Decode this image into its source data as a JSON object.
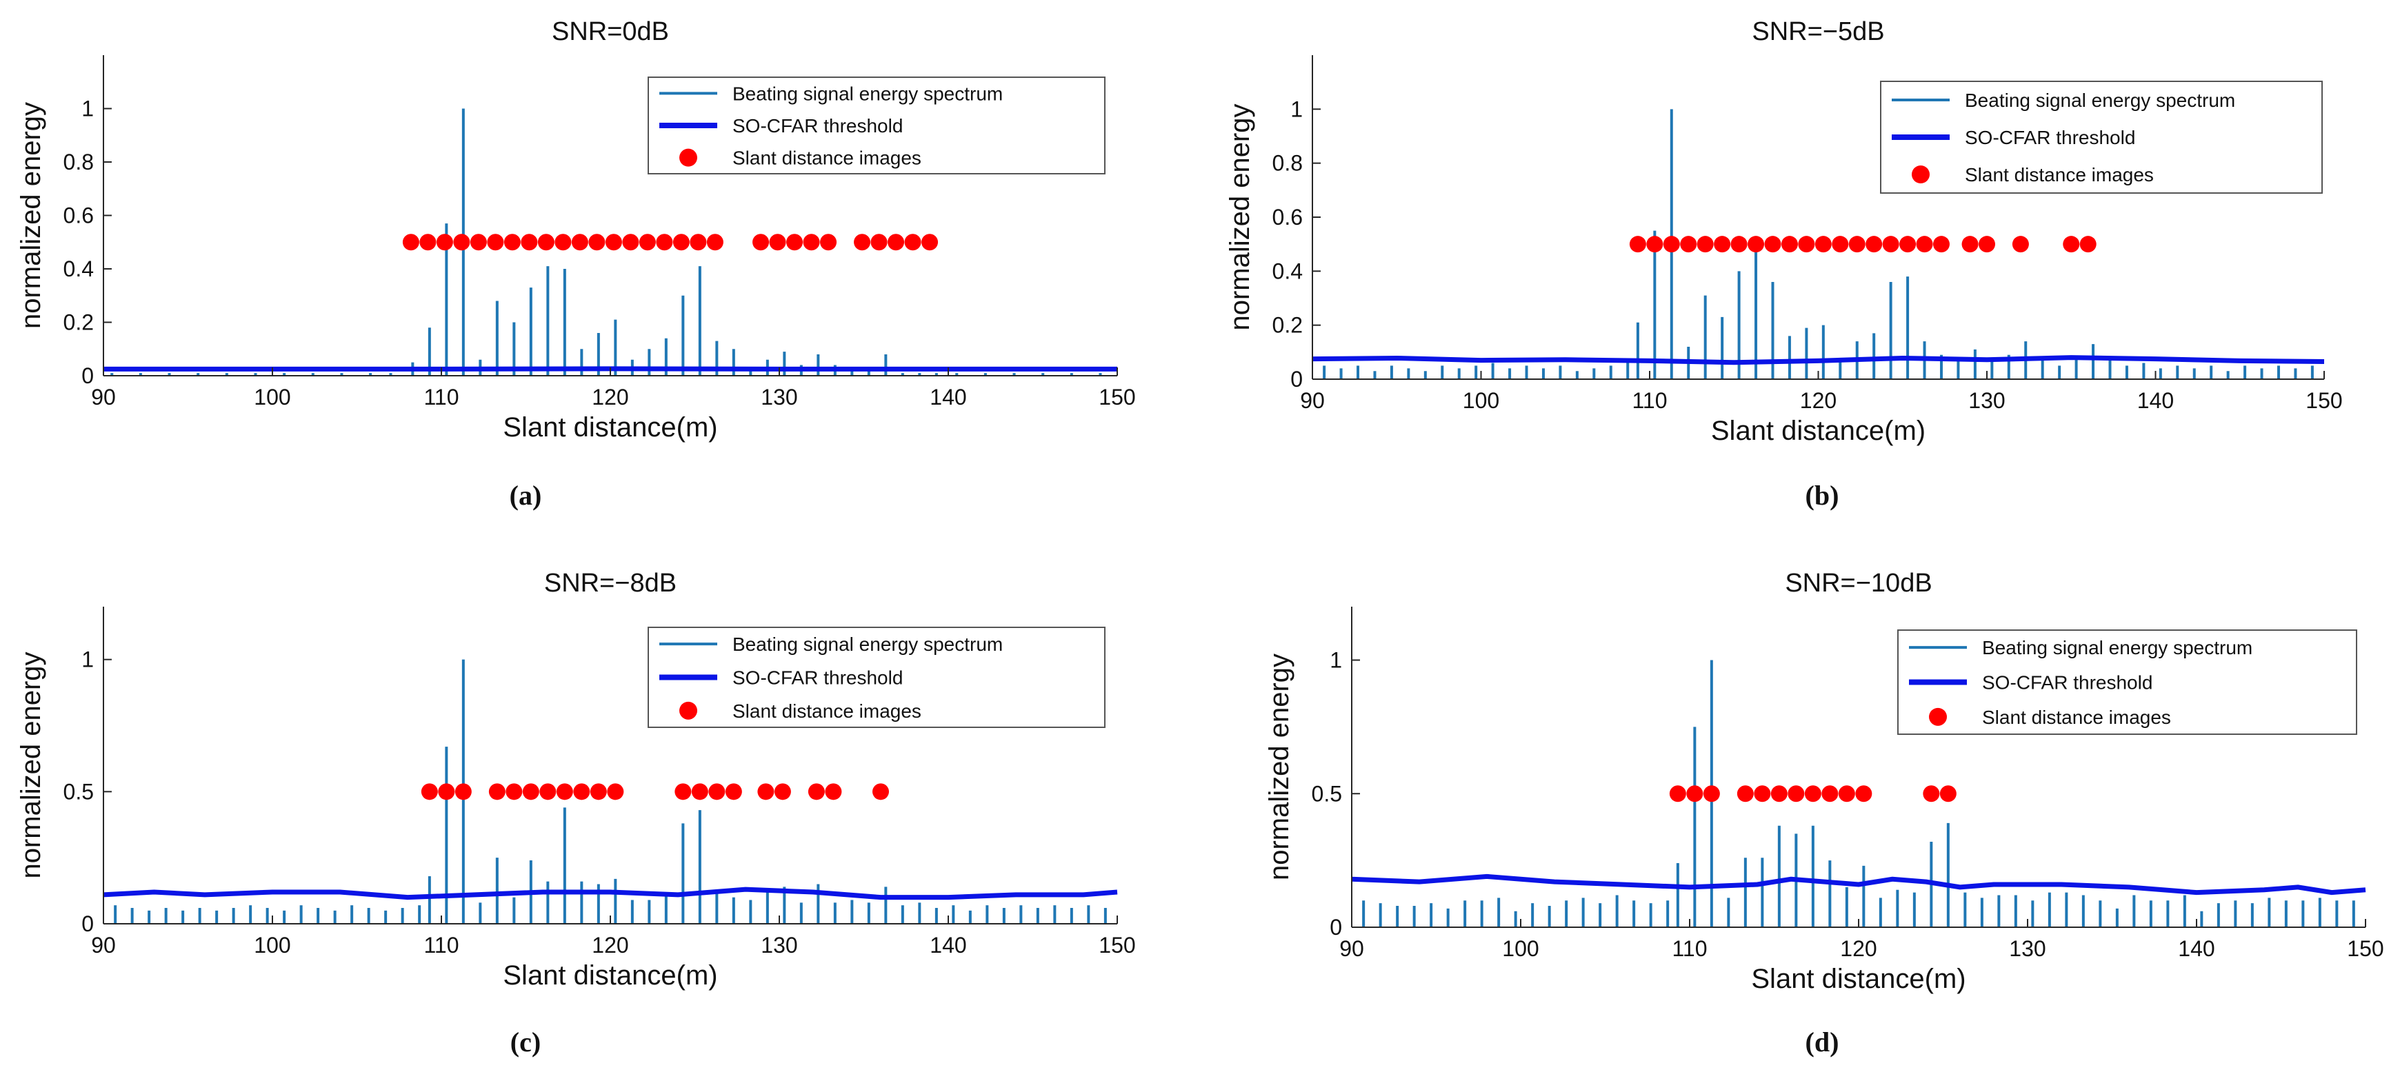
{
  "figure": {
    "legend": {
      "spectrum": "Beating signal energy spectrum",
      "threshold": "SO-CFAR threshold",
      "images": "Slant distance images"
    },
    "colors": {
      "spectrum": "#1f77b4",
      "threshold": "#0a14e6",
      "images": "#ff0000",
      "axis": "#262626"
    }
  },
  "chart_data": [
    {
      "id": "a",
      "label": "(a)",
      "type": "bar",
      "title": "SNR=0dB",
      "xlabel": "Slant distance(m)",
      "ylabel": "normalized energy",
      "xlim": [
        90,
        150
      ],
      "ylim": [
        0,
        1.2
      ],
      "xticks": [
        90,
        100,
        110,
        120,
        130,
        140,
        150
      ],
      "yticks": [
        0,
        0.2,
        0.4,
        0.6,
        0.8,
        1
      ],
      "ytick_labels": [
        "0",
        "0.2",
        "0.4",
        "0.6",
        "0.8",
        "1"
      ],
      "series": [
        {
          "name": "Beating signal energy spectrum",
          "x": [
            90.5,
            92.2,
            93.9,
            95.6,
            97.3,
            99.0,
            100.7,
            102.4,
            104.1,
            105.8,
            107.0,
            108.3,
            109.3,
            110.3,
            111.3,
            112.3,
            113.3,
            114.3,
            115.3,
            116.3,
            117.3,
            118.3,
            119.3,
            120.3,
            121.3,
            122.3,
            123.3,
            124.3,
            125.3,
            126.3,
            127.3,
            128.3,
            129.3,
            130.3,
            131.3,
            132.3,
            133.3,
            134.3,
            135.3,
            136.3,
            137.3,
            138.3,
            139.3,
            140.5,
            142.2,
            143.9,
            145.6,
            147.3,
            149.0
          ],
          "values": [
            0.01,
            0.01,
            0.01,
            0.01,
            0.01,
            0.01,
            0.01,
            0.01,
            0.01,
            0.01,
            0.01,
            0.05,
            0.18,
            0.57,
            1.0,
            0.06,
            0.28,
            0.2,
            0.33,
            0.41,
            0.4,
            0.1,
            0.16,
            0.21,
            0.06,
            0.1,
            0.14,
            0.3,
            0.41,
            0.13,
            0.1,
            0.02,
            0.06,
            0.09,
            0.04,
            0.08,
            0.04,
            0.03,
            0.02,
            0.08,
            0.01,
            0.01,
            0.01,
            0.01,
            0.01,
            0.01,
            0.01,
            0.01,
            0.01
          ]
        },
        {
          "name": "SO-CFAR threshold",
          "x": [
            90,
            100,
            110,
            120,
            130,
            140,
            150
          ],
          "values": [
            0.025,
            0.025,
            0.025,
            0.026,
            0.025,
            0.025,
            0.025
          ]
        },
        {
          "name": "Slant distance images",
          "x": [
            108.2,
            109.2,
            110.2,
            111.2,
            112.2,
            113.2,
            114.2,
            115.2,
            116.2,
            117.2,
            118.2,
            119.2,
            120.2,
            121.2,
            122.2,
            123.2,
            124.2,
            125.2,
            126.2,
            128.9,
            129.9,
            130.9,
            131.9,
            132.9,
            134.9,
            135.9,
            136.9,
            137.9,
            138.9
          ],
          "values": [
            0.5,
            0.5,
            0.5,
            0.5,
            0.5,
            0.5,
            0.5,
            0.5,
            0.5,
            0.5,
            0.5,
            0.5,
            0.5,
            0.5,
            0.5,
            0.5,
            0.5,
            0.5,
            0.5,
            0.5,
            0.5,
            0.5,
            0.5,
            0.5,
            0.5,
            0.5,
            0.5,
            0.5,
            0.5
          ]
        }
      ]
    },
    {
      "id": "b",
      "label": "(b)",
      "type": "bar",
      "title": "SNR=−5dB",
      "xlabel": "Slant distance(m)",
      "ylabel": "normalized energy",
      "xlim": [
        90,
        150
      ],
      "ylim": [
        0,
        1.2
      ],
      "xticks": [
        90,
        100,
        110,
        120,
        130,
        140,
        150
      ],
      "yticks": [
        0,
        0.2,
        0.4,
        0.6,
        0.8,
        1
      ],
      "ytick_labels": [
        "0",
        "0.2",
        "0.4",
        "0.6",
        "0.8",
        "1"
      ],
      "series": [
        {
          "name": "Beating signal energy spectrum",
          "x": [
            90.7,
            91.7,
            92.7,
            93.7,
            94.7,
            95.7,
            96.7,
            97.7,
            98.7,
            99.7,
            100.7,
            101.7,
            102.7,
            103.7,
            104.7,
            105.7,
            106.7,
            107.7,
            108.7,
            109.3,
            110.3,
            111.3,
            112.3,
            113.3,
            114.3,
            115.3,
            116.3,
            117.3,
            118.3,
            119.3,
            120.3,
            121.3,
            122.3,
            123.3,
            124.3,
            125.3,
            126.3,
            127.3,
            128.3,
            129.3,
            130.3,
            131.3,
            132.3,
            133.3,
            134.3,
            135.3,
            136.3,
            137.3,
            138.3,
            139.3,
            140.3,
            141.3,
            142.3,
            143.3,
            144.3,
            145.3,
            146.3,
            147.3,
            148.3,
            149.3
          ],
          "values": [
            0.05,
            0.04,
            0.05,
            0.03,
            0.05,
            0.04,
            0.03,
            0.05,
            0.04,
            0.05,
            0.06,
            0.04,
            0.05,
            0.04,
            0.05,
            0.03,
            0.04,
            0.05,
            0.07,
            0.21,
            0.55,
            1.0,
            0.12,
            0.31,
            0.23,
            0.4,
            0.47,
            0.36,
            0.16,
            0.19,
            0.2,
            0.07,
            0.14,
            0.17,
            0.36,
            0.38,
            0.14,
            0.09,
            0.08,
            0.11,
            0.07,
            0.09,
            0.14,
            0.08,
            0.05,
            0.08,
            0.13,
            0.07,
            0.05,
            0.06,
            0.04,
            0.05,
            0.04,
            0.05,
            0.03,
            0.05,
            0.04,
            0.05,
            0.04,
            0.05
          ]
        },
        {
          "name": "SO-CFAR threshold",
          "x": [
            90,
            95,
            100,
            105,
            110,
            115,
            120,
            125,
            130,
            135,
            140,
            145,
            150
          ],
          "values": [
            0.075,
            0.078,
            0.07,
            0.072,
            0.068,
            0.062,
            0.068,
            0.078,
            0.072,
            0.08,
            0.075,
            0.068,
            0.065
          ]
        },
        {
          "name": "Slant distance images",
          "x": [
            109.3,
            110.3,
            111.3,
            112.3,
            113.3,
            114.3,
            115.3,
            116.3,
            117.3,
            118.3,
            119.3,
            120.3,
            121.3,
            122.3,
            123.3,
            124.3,
            125.3,
            126.3,
            127.3,
            129.0,
            130.0,
            132.0,
            135.0,
            136.0
          ],
          "values": [
            0.5,
            0.5,
            0.5,
            0.5,
            0.5,
            0.5,
            0.5,
            0.5,
            0.5,
            0.5,
            0.5,
            0.5,
            0.5,
            0.5,
            0.5,
            0.5,
            0.5,
            0.5,
            0.5,
            0.5,
            0.5,
            0.5,
            0.5,
            0.5
          ]
        }
      ]
    },
    {
      "id": "c",
      "label": "(c)",
      "type": "bar",
      "title": "SNR=−8dB",
      "xlabel": "Slant distance(m)",
      "ylabel": "normalized energy",
      "xlim": [
        90,
        150
      ],
      "ylim": [
        0,
        1.2
      ],
      "xticks": [
        90,
        100,
        110,
        120,
        130,
        140,
        150
      ],
      "yticks": [
        0,
        0.5,
        1
      ],
      "ytick_labels": [
        "0",
        "0.5",
        "1"
      ],
      "series": [
        {
          "name": "Beating signal energy spectrum",
          "x": [
            90.7,
            91.7,
            92.7,
            93.7,
            94.7,
            95.7,
            96.7,
            97.7,
            98.7,
            99.7,
            100.7,
            101.7,
            102.7,
            103.7,
            104.7,
            105.7,
            106.7,
            107.7,
            108.7,
            109.3,
            110.3,
            111.3,
            112.3,
            113.3,
            114.3,
            115.3,
            116.3,
            117.3,
            118.3,
            119.3,
            120.3,
            121.3,
            122.3,
            123.3,
            124.3,
            125.3,
            126.3,
            127.3,
            128.3,
            129.3,
            130.3,
            131.3,
            132.3,
            133.3,
            134.3,
            135.3,
            136.3,
            137.3,
            138.3,
            139.3,
            140.3,
            141.3,
            142.3,
            143.3,
            144.3,
            145.3,
            146.3,
            147.3,
            148.3,
            149.3
          ],
          "values": [
            0.07,
            0.06,
            0.05,
            0.06,
            0.05,
            0.06,
            0.05,
            0.06,
            0.07,
            0.06,
            0.05,
            0.07,
            0.06,
            0.05,
            0.07,
            0.06,
            0.05,
            0.06,
            0.07,
            0.18,
            0.67,
            1.0,
            0.08,
            0.25,
            0.1,
            0.24,
            0.16,
            0.44,
            0.16,
            0.15,
            0.17,
            0.09,
            0.09,
            0.11,
            0.38,
            0.43,
            0.12,
            0.1,
            0.09,
            0.12,
            0.14,
            0.08,
            0.15,
            0.08,
            0.09,
            0.08,
            0.14,
            0.07,
            0.08,
            0.06,
            0.07,
            0.05,
            0.07,
            0.06,
            0.07,
            0.06,
            0.07,
            0.06,
            0.07,
            0.06
          ]
        },
        {
          "name": "SO-CFAR threshold",
          "x": [
            90,
            93,
            96,
            100,
            104,
            108,
            112,
            116,
            120,
            124,
            128,
            132,
            136,
            140,
            144,
            148,
            150
          ],
          "values": [
            0.11,
            0.12,
            0.11,
            0.12,
            0.12,
            0.1,
            0.11,
            0.12,
            0.12,
            0.11,
            0.13,
            0.12,
            0.1,
            0.1,
            0.11,
            0.11,
            0.12
          ]
        },
        {
          "name": "Slant distance images",
          "x": [
            109.3,
            110.3,
            111.3,
            113.3,
            114.3,
            115.3,
            116.3,
            117.3,
            118.3,
            119.3,
            120.3,
            124.3,
            125.3,
            126.3,
            127.3,
            129.2,
            130.2,
            132.2,
            133.2,
            136.0
          ],
          "values": [
            0.5,
            0.5,
            0.5,
            0.5,
            0.5,
            0.5,
            0.5,
            0.5,
            0.5,
            0.5,
            0.5,
            0.5,
            0.5,
            0.5,
            0.5,
            0.5,
            0.5,
            0.5,
            0.5,
            0.5
          ]
        }
      ]
    },
    {
      "id": "d",
      "label": "(d)",
      "type": "bar",
      "title": "SNR=−10dB",
      "xlabel": "Slant distance(m)",
      "ylabel": "normalized energy",
      "xlim": [
        90,
        150
      ],
      "ylim": [
        0,
        1.2
      ],
      "xticks": [
        90,
        100,
        110,
        120,
        130,
        140,
        150
      ],
      "yticks": [
        0,
        0.5,
        1
      ],
      "ytick_labels": [
        "0",
        "0.5",
        "1"
      ],
      "series": [
        {
          "name": "Beating signal energy spectrum",
          "x": [
            90.7,
            91.7,
            92.7,
            93.7,
            94.7,
            95.7,
            96.7,
            97.7,
            98.7,
            99.7,
            100.7,
            101.7,
            102.7,
            103.7,
            104.7,
            105.7,
            106.7,
            107.7,
            108.7,
            109.3,
            110.3,
            111.3,
            112.3,
            113.3,
            114.3,
            115.3,
            116.3,
            117.3,
            118.3,
            119.3,
            120.3,
            121.3,
            122.3,
            123.3,
            124.3,
            125.3,
            126.3,
            127.3,
            128.3,
            129.3,
            130.3,
            131.3,
            132.3,
            133.3,
            134.3,
            135.3,
            136.3,
            137.3,
            138.3,
            139.3,
            140.3,
            141.3,
            142.3,
            143.3,
            144.3,
            145.3,
            146.3,
            147.3,
            148.3,
            149.3
          ],
          "values": [
            0.1,
            0.09,
            0.08,
            0.08,
            0.09,
            0.07,
            0.1,
            0.1,
            0.11,
            0.06,
            0.09,
            0.08,
            0.1,
            0.11,
            0.09,
            0.12,
            0.1,
            0.09,
            0.1,
            0.24,
            0.75,
            1.0,
            0.11,
            0.26,
            0.26,
            0.38,
            0.35,
            0.38,
            0.25,
            0.15,
            0.23,
            0.11,
            0.14,
            0.13,
            0.32,
            0.39,
            0.13,
            0.11,
            0.12,
            0.12,
            0.1,
            0.13,
            0.13,
            0.12,
            0.1,
            0.07,
            0.12,
            0.1,
            0.1,
            0.12,
            0.06,
            0.09,
            0.1,
            0.09,
            0.11,
            0.1,
            0.1,
            0.11,
            0.1,
            0.1
          ]
        },
        {
          "name": "SO-CFAR threshold",
          "x": [
            90,
            94,
            98,
            102,
            106,
            110,
            114,
            116,
            120,
            122,
            124,
            126,
            128,
            132,
            136,
            140,
            144,
            146,
            148,
            150
          ],
          "values": [
            0.18,
            0.17,
            0.19,
            0.17,
            0.16,
            0.15,
            0.16,
            0.18,
            0.16,
            0.18,
            0.17,
            0.15,
            0.16,
            0.16,
            0.15,
            0.13,
            0.14,
            0.15,
            0.13,
            0.14
          ]
        },
        {
          "name": "Slant distance images",
          "x": [
            109.3,
            110.3,
            111.3,
            113.3,
            114.3,
            115.3,
            116.3,
            117.3,
            118.3,
            119.3,
            120.3,
            124.3,
            125.3
          ],
          "values": [
            0.5,
            0.5,
            0.5,
            0.5,
            0.5,
            0.5,
            0.5,
            0.5,
            0.5,
            0.5,
            0.5,
            0.5,
            0.5
          ]
        }
      ]
    }
  ]
}
